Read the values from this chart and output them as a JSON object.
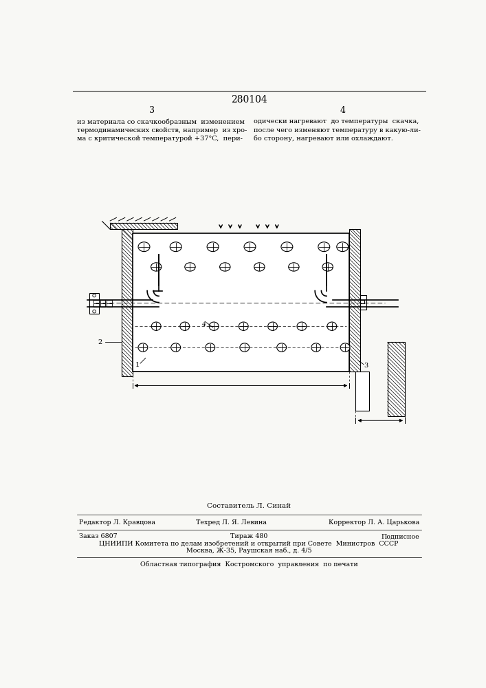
{
  "page_number": "280104",
  "col_left": "3",
  "col_right": "4",
  "text_left": "из материала со скачкообразным  изменением\nтермодинамических свойств, например  из хро-\nма с критической температурой +37°C,  пери-",
  "text_right": "одически нагревают  до температуры  скачка,\nпосле чего изменяют температуру в какую-ли-\nбо сторону, нагревают или охлаждают.",
  "composer": "Составитель Л. Синай",
  "editor": "Редактор Л. Кравцова",
  "techred": "Техред Л. Я. Левина",
  "corrector": "Корректор Л. А. Царькова",
  "order": "Заказ 6807",
  "tirazh": "Тираж 480",
  "podpisnoe": "Подписное",
  "tsniipi_line1": "ЦНИИПИ Комитета по делам изобретений и открытий при Совете  Министров  СССР",
  "tsniipi_line2": "Москва, Ж-35, Раушская наб., д. 4/5",
  "tipografia": "Областная типография  Костромского  управления  по печати",
  "bg_color": "#f8f8f5"
}
